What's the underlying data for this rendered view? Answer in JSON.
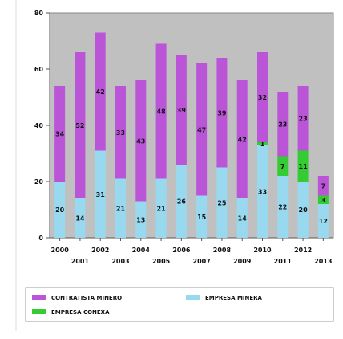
{
  "chart_data": {
    "type": "bar",
    "stacked": true,
    "categories": [
      "2000",
      "2001",
      "2002",
      "2003",
      "2004",
      "2005",
      "2006",
      "2007",
      "2008",
      "2009",
      "2010",
      "2011",
      "2012",
      "2013"
    ],
    "series": [
      {
        "name": "EMPRESA MINERA",
        "color": "#99d9ef",
        "values": [
          20,
          14,
          31,
          21,
          13,
          21,
          26,
          15,
          25,
          14,
          33,
          22,
          20,
          12
        ]
      },
      {
        "name": "EMPRESA CONEXA",
        "color": "#33cc33",
        "values": [
          0,
          0,
          0,
          0,
          0,
          0,
          0,
          0,
          0,
          0,
          1,
          7,
          11,
          3
        ]
      },
      {
        "name": "CONTRATISTA MINERO",
        "color": "#bb55d8",
        "values": [
          34,
          52,
          42,
          33,
          43,
          48,
          39,
          47,
          39,
          42,
          32,
          23,
          23,
          7
        ]
      }
    ],
    "ylim": [
      0,
      80
    ],
    "yticks": [
      0,
      20,
      40,
      60,
      80
    ],
    "title": "",
    "xlabel": "",
    "ylabel": "",
    "grid": false,
    "legend_position": "bottom",
    "plot_background": "#c0c0c0"
  }
}
